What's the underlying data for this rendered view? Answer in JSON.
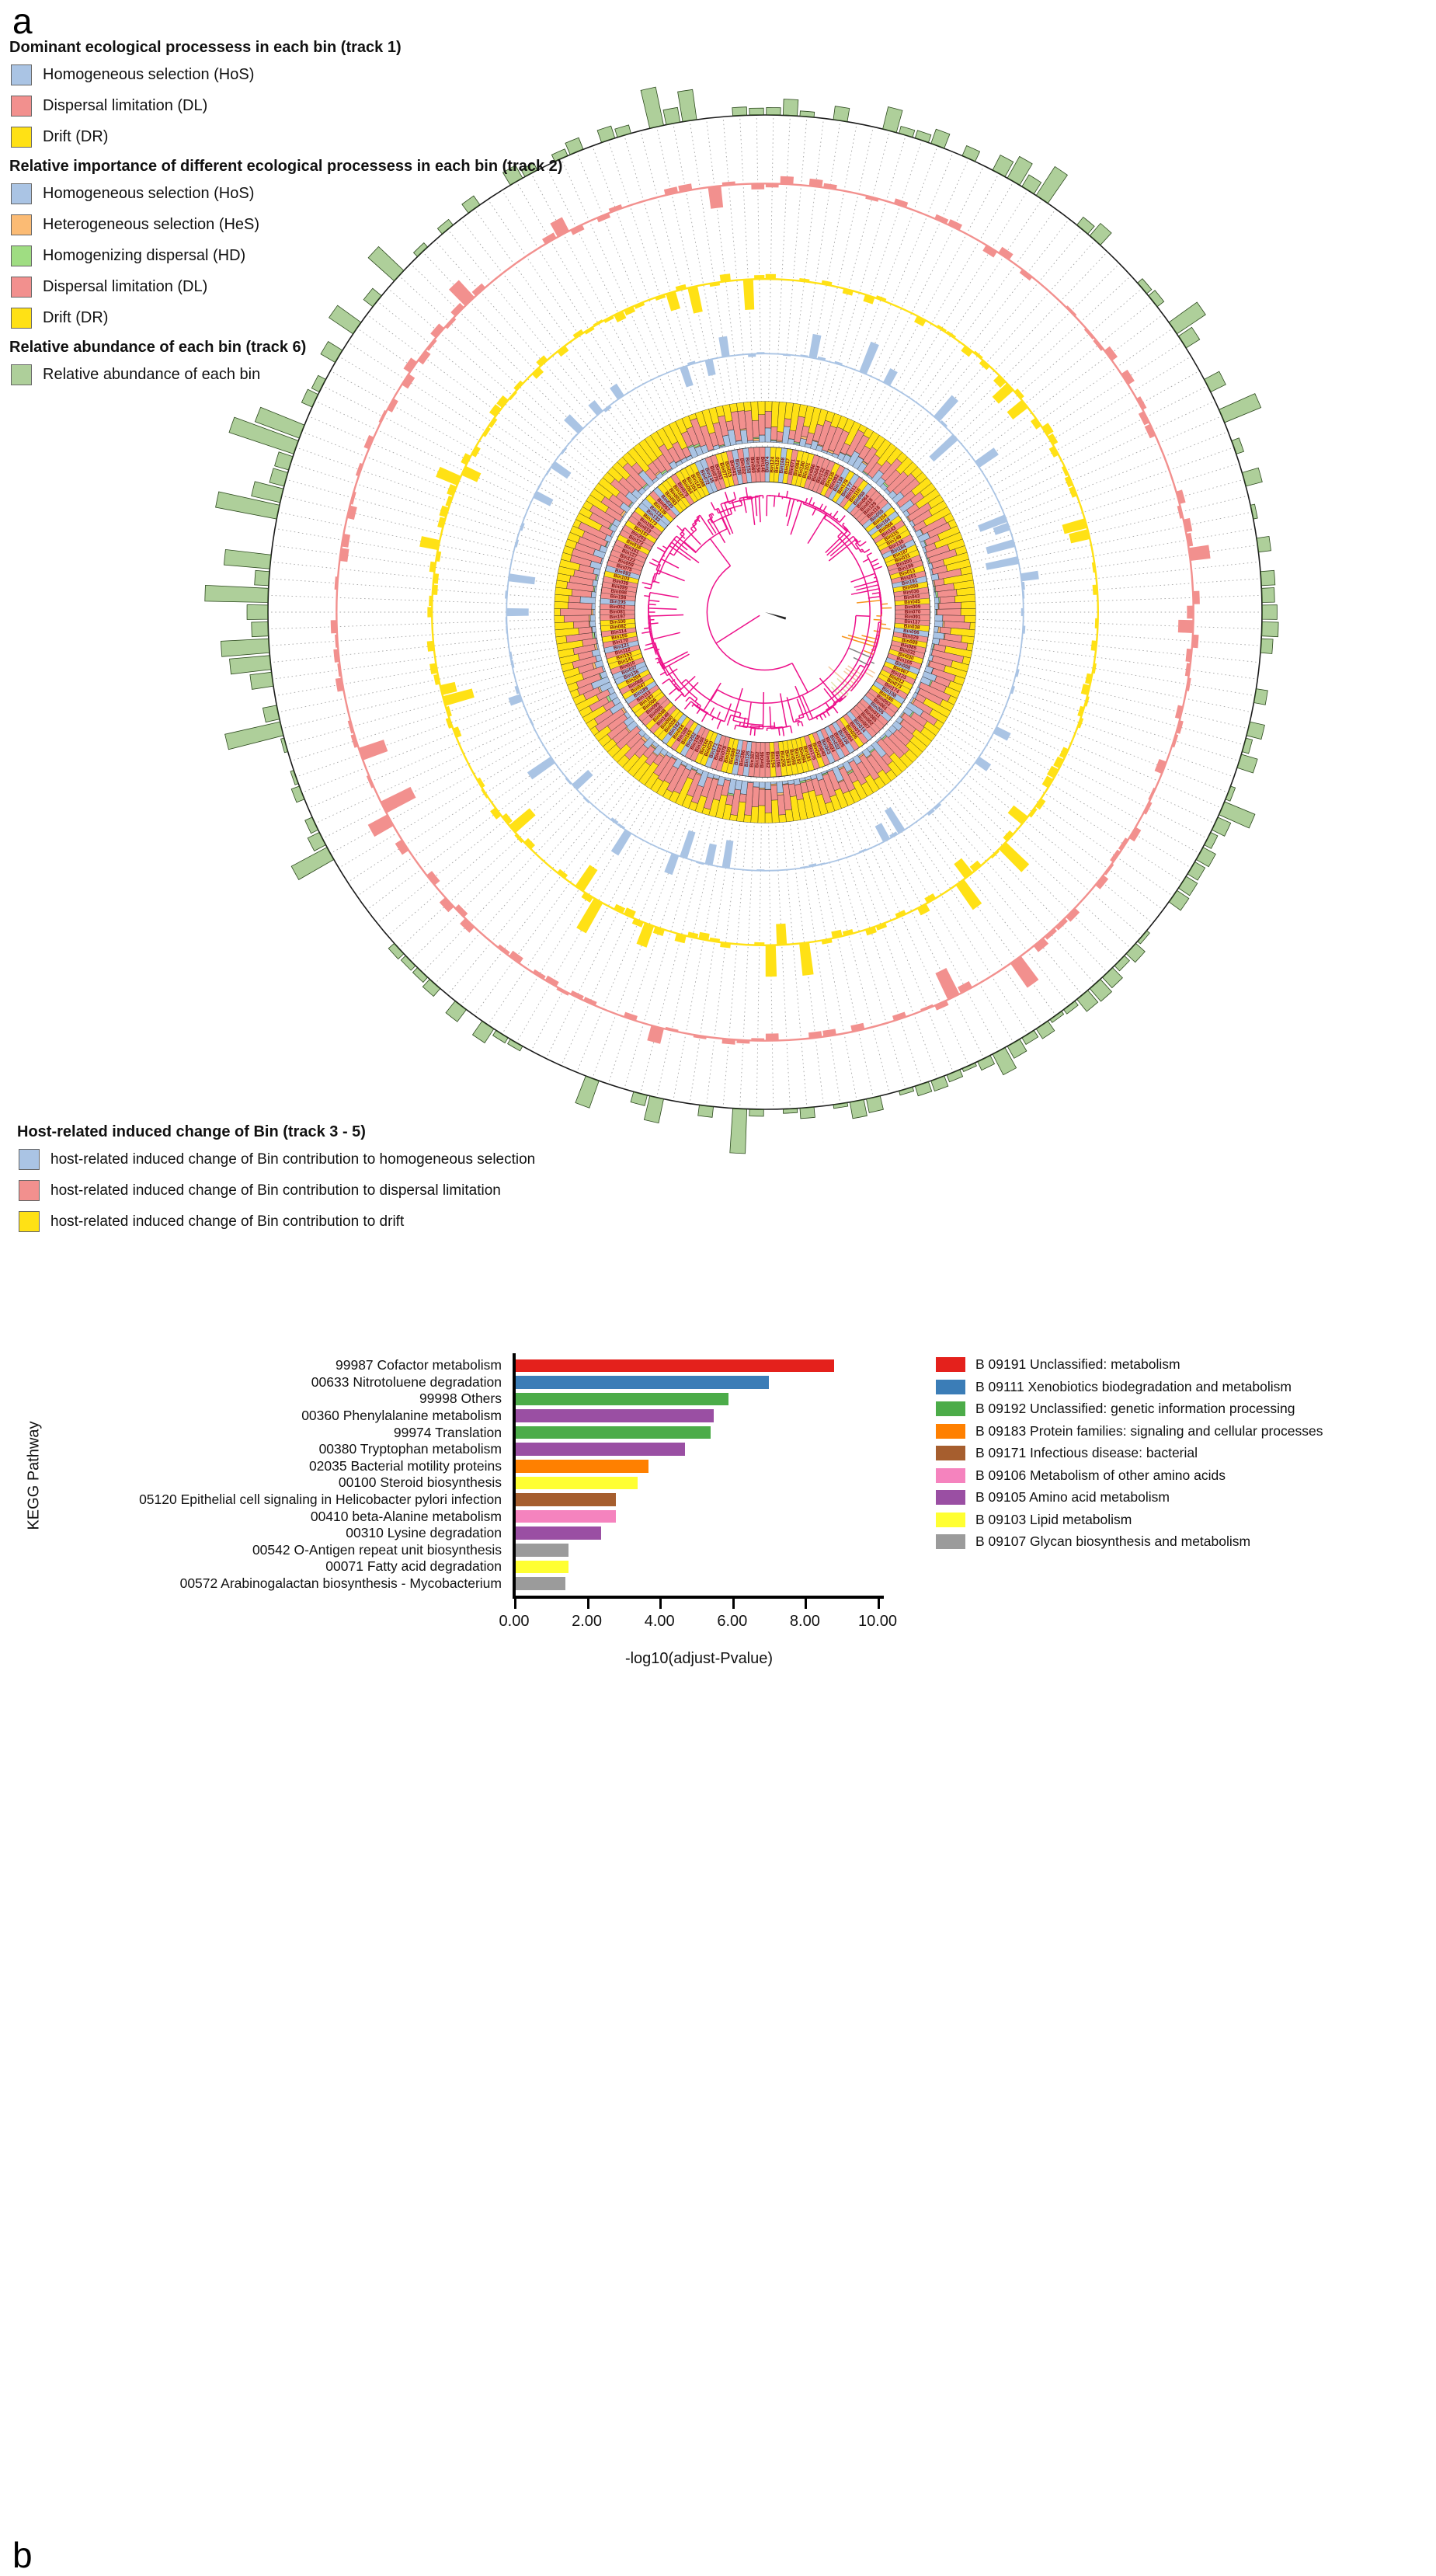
{
  "panel_a": {
    "label": "a",
    "legends": [
      {
        "title": "Dominant ecological processess in each bin (track 1)",
        "items": [
          {
            "label": "Homogeneous selection (HoS)",
            "color": "#aac4e4"
          },
          {
            "label": "Dispersal limitation (DL)",
            "color": "#f2908e"
          },
          {
            "label": "Drift (DR)",
            "color": "#ffe115"
          }
        ]
      },
      {
        "title": "Relative importance of different ecological processess in each bin (track 2)",
        "items": [
          {
            "label": "Homogeneous selection (HoS)",
            "color": "#aac4e4"
          },
          {
            "label": "Heterogeneous selection (HeS)",
            "color": "#fbbb74"
          },
          {
            "label": "Homogenizing dispersal (HD)",
            "color": "#9fdd82"
          },
          {
            "label": "Dispersal limitation (DL)",
            "color": "#f2908e"
          },
          {
            "label": "Drift (DR)",
            "color": "#ffe115"
          }
        ]
      },
      {
        "title": "Relative abundance of each bin (track 6)",
        "items": [
          {
            "label": "Relative abundance of each bin",
            "color": "#aecf9a"
          }
        ]
      },
      {
        "title": "Host-related induced change of Bin (track 3 - 5)",
        "items": [
          {
            "label": "host-related induced change of Bin contribution to homogeneous selection",
            "color": "#aac4e4"
          },
          {
            "label": "host-related induced change of Bin contribution to dispersal limitation",
            "color": "#f2908e"
          },
          {
            "label": "host-related induced change of Bin contribution to drift",
            "color": "#ffe115"
          }
        ]
      }
    ]
  },
  "panel_b": {
    "label": "b",
    "ylabel": "KEGG Pathway",
    "xlabel": "-log10(adjust-Pvalue)"
  },
  "chart_data": [
    {
      "type": "bar",
      "orientation": "horizontal",
      "title": "",
      "xlabel": "-log10(adjust-Pvalue)",
      "ylabel": "KEGG Pathway",
      "xlim": [
        0,
        10
      ],
      "x_ticks": [
        "0.00",
        "2.00",
        "4.00",
        "6.00",
        "8.00",
        "10.00"
      ],
      "x_tick_values": [
        0,
        2,
        4,
        6,
        8,
        10
      ],
      "categories": [
        "99987 Cofactor metabolism",
        "00633 Nitrotoluene degradation",
        "99998 Others",
        "00360 Phenylalanine metabolism",
        "99974 Translation",
        "00380 Tryptophan metabolism",
        "02035 Bacterial motility proteins",
        "00100 Steroid biosynthesis",
        "05120 Epithelial cell signaling in Helicobacter pylori infection",
        "00410 beta-Alanine metabolism",
        "00310 Lysine degradation",
        "00542 O-Antigen repeat unit biosynthesis",
        "00071 Fatty acid degradation",
        "00572 Arabinogalactan biosynthesis - Mycobacterium"
      ],
      "values": [
        8.8,
        7.0,
        5.9,
        5.5,
        5.4,
        4.7,
        3.7,
        3.4,
        2.8,
        2.8,
        2.4,
        1.5,
        1.5,
        1.4
      ],
      "bar_groups": [
        "B 09191",
        "B 09111",
        "B 09192",
        "B 09105",
        "B 09192",
        "B 09105",
        "B 09183",
        "B 09103",
        "B 09171",
        "B 09106",
        "B 09105",
        "B 09107",
        "B 09103",
        "B 09107"
      ],
      "legend_position": "right",
      "legend": [
        {
          "label": "B  09191 Unclassified: metabolism",
          "color": "#e4211c"
        },
        {
          "label": "B  09111 Xenobiotics biodegradation and metabolism",
          "color": "#3b7db7"
        },
        {
          "label": "B  09192 Unclassified: genetic information processing",
          "color": "#4cac49"
        },
        {
          "label": "B  09183 Protein families: signaling and cellular processes",
          "color": "#ff8000"
        },
        {
          "label": "B  09171 Infectious disease: bacterial",
          "color": "#a65e2e"
        },
        {
          "label": "B  09106 Metabolism of other amino acids",
          "color": "#f583be"
        },
        {
          "label": "B  09105 Amino acid metabolism",
          "color": "#9a4fa3"
        },
        {
          "label": "B  09103 Lipid metabolism",
          "color": "#ffff32"
        },
        {
          "label": "B  09107 Glycan biosynthesis and metabolism",
          "color": "#9b9b9b"
        }
      ],
      "group_colors": {
        "B 09191": "#e4211c",
        "B 09111": "#3b7db7",
        "B 09192": "#4cac49",
        "B 09183": "#ff8000",
        "B 09171": "#a65e2e",
        "B 09106": "#f583be",
        "B 09105": "#9a4fa3",
        "B 09103": "#ffff32",
        "B 09107": "#9b9b9b"
      }
    },
    {
      "type": "circos-phylogenetic-tree",
      "bins": 186,
      "seed": 7,
      "label_text_color": "#7a0f0f",
      "dashed_guide_color": "#a6a6a6",
      "outer_circle_color": "#1a1a1a",
      "tracks": [
        {
          "id": 1,
          "name": "Dominant ecological process per bin (cells behind bin labels)",
          "kind": "categorical-ring",
          "categories": [
            "HoS",
            "DL",
            "DR"
          ],
          "colors": {
            "HoS": "#aac4e4",
            "DL": "#f2908e",
            "DR": "#ffe115"
          }
        },
        {
          "id": 2,
          "name": "Relative importance of ecological processes (100% stacked ring)",
          "kind": "stacked-ring",
          "order": [
            "HoS",
            "HeS",
            "HD",
            "DL",
            "DR"
          ],
          "colors": {
            "HoS": "#aac4e4",
            "HeS": "#fbbb74",
            "HD": "#9fdd82",
            "DL": "#f2908e",
            "DR": "#ffe115"
          }
        },
        {
          "id": 3,
          "name": "Host-related induced change of Bin contribution to homogeneous selection",
          "kind": "diverging-bar-ring",
          "color": "#aac4e4"
        },
        {
          "id": 4,
          "name": "Host-related induced change of Bin contribution to drift",
          "kind": "diverging-bar-ring",
          "color": "#ffe115"
        },
        {
          "id": 5,
          "name": "Host-related induced change of Bin contribution to dispersal limitation",
          "kind": "diverging-bar-ring",
          "color": "#f2908e"
        },
        {
          "id": 6,
          "name": "Relative abundance of each bin",
          "kind": "outward-bar-ring",
          "color": "#aecf9a",
          "stroke": "#2d4a1e"
        }
      ],
      "tree": {
        "main_color": "#ed108a",
        "clades": [
          {
            "name": "clade-orange",
            "color": "#f7941d",
            "angle_start": 83,
            "angle_end": 112
          },
          {
            "name": "clade-gray",
            "color": "#808080",
            "angle_start": 112,
            "angle_end": 119
          },
          {
            "name": "clade-peach",
            "color": "#f6c9a0",
            "angle_start": 119,
            "angle_end": 131
          },
          {
            "name": "clade-palegreen",
            "color": "#e2e5ae",
            "angle_start": 131,
            "angle_end": 140
          }
        ]
      },
      "observed_bin_labels": [
        "Bin074",
        "Bin124",
        "Bin120",
        "Bin168",
        "Bin117",
        "Bin071",
        "Bin084",
        "Bin180",
        "Bin101",
        "Bin086",
        "Bin044",
        "Bin132",
        "Bin190",
        "Bin135",
        "Bin092",
        "Bin138",
        "Bin178",
        "Bin177",
        "Bin111",
        "Bin110",
        "Bin058",
        "Bin064",
        "Bin018",
        "Bin129",
        "Bin118",
        "Bin055",
        "Bin154",
        "Bin164",
        "Bin066",
        "Bin143",
        "Bin115",
        "Bin149",
        "Bin130",
        "Bin184",
        "Bin187",
        "Bin031",
        "Bin200",
        "Bin199",
        "Bin013",
        "Bin201",
        "Bin191",
        "Bin090",
        "Bin036",
        "Bin043",
        "Bin045",
        "Bin009",
        "Bin070",
        "Bin091",
        "Bin137",
        "Bin038",
        "Bin096",
        "Bin029",
        "Bin089",
        "Bin085",
        "Bin032",
        "Bin030",
        "Bin105",
        "Bin008",
        "Bin067",
        "Bin123",
        "Bin012",
        "Bin073",
        "Bin174",
        "Bin108",
        "Bin185",
        "Bin053",
        "Bin061",
        "Bin205",
        "Bin011",
        "Bin065",
        "Bin002",
        "Bin007",
        "Bin014",
        "Bin017",
        "Bin026",
        "Bin004",
        "Bin106",
        "Bin025",
        "Bin022",
        "Bin024",
        "Bin003",
        "Bin040",
        "Bin042",
        "Bin176",
        "Bin181",
        "Bin094",
        "Bin192",
        "Bin056",
        "Bin163",
        "Bin206"
      ]
    }
  ]
}
